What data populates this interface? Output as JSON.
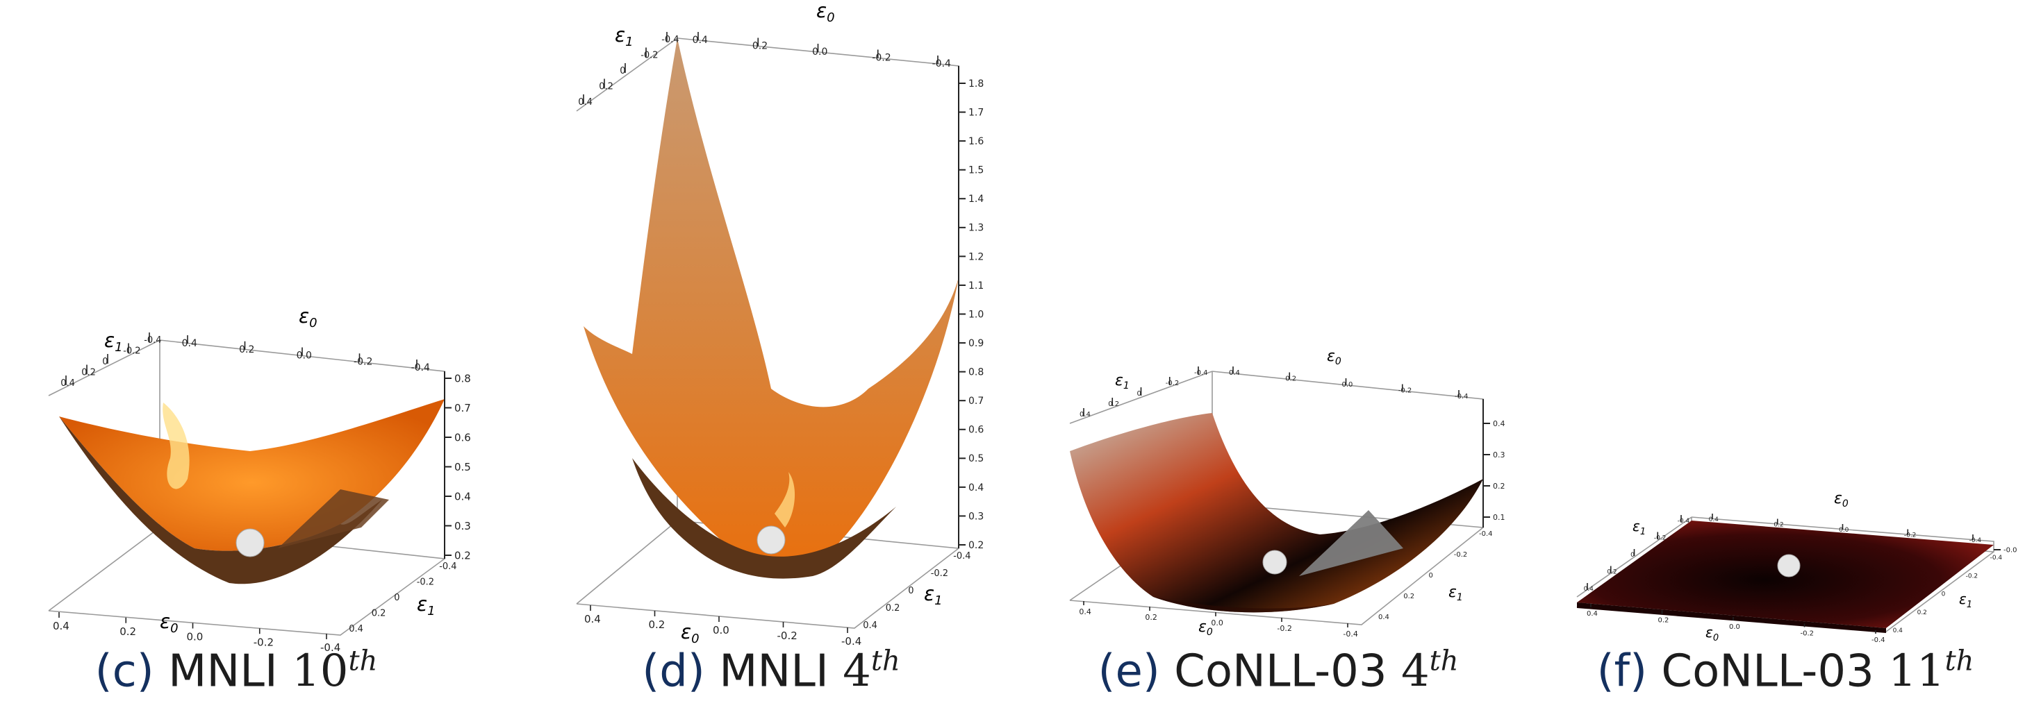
{
  "panels": [
    {
      "label": "(c)",
      "dataset": "MNLI",
      "layer_num": "10",
      "layer_sup": "th",
      "z_ticks": [
        "0.2",
        "0.3",
        "0.4",
        "0.5",
        "0.6",
        "0.7",
        "0.8"
      ],
      "x_ticks": [
        "0.4",
        "0.2",
        "0.0",
        "-0.2",
        "-0.4"
      ],
      "y_ticks": [
        "-0.4",
        "-0.2",
        "0",
        "0.2",
        "0.4"
      ],
      "colors": {
        "surface": "#e8700f",
        "rim": "#5a3418",
        "highlight": "#ffe08a"
      }
    },
    {
      "label": "(d)",
      "dataset": "MNLI",
      "layer_num": "4",
      "layer_sup": "th",
      "z_ticks": [
        "0.2",
        "0.3",
        "0.4",
        "0.5",
        "0.6",
        "0.7",
        "0.8",
        "0.9",
        "1.0",
        "1.1",
        "1.2",
        "1.3",
        "1.4",
        "1.5",
        "1.6",
        "1.7",
        "1.8"
      ],
      "x_ticks": [
        "0.4",
        "0.2",
        "0.0",
        "-0.2",
        "-0.4"
      ],
      "y_ticks": [
        "-0.4",
        "-0.2",
        "0",
        "0.2",
        "0.4"
      ],
      "colors": {
        "surface": "#c98a4e",
        "rim": "#5a3418",
        "highlight": "#ffd27a"
      }
    },
    {
      "label": "(e)",
      "dataset": "CoNLL-03",
      "layer_num": "4",
      "layer_sup": "th",
      "z_ticks": [
        "0.1",
        "0.2",
        "0.3",
        "0.4"
      ],
      "x_ticks": [
        "0.4",
        "0.2",
        "0.0",
        "-0.2",
        "-0.4"
      ],
      "y_ticks": [
        "-0.4",
        "-0.2",
        "0",
        "0.2",
        "0.4"
      ],
      "colors": {
        "surface": "#9b2f10",
        "rim": "#1a0a05",
        "highlight": "#c8c0b4"
      }
    },
    {
      "label": "(f)",
      "dataset": "CoNLL-03",
      "layer_num": "11",
      "layer_sup": "th",
      "z_ticks": [
        "-0.0"
      ],
      "x_ticks": [
        "0.4",
        "0.2",
        "0.0",
        "-0.2",
        "-0.4"
      ],
      "y_ticks": [
        "-0.4",
        "-0.2",
        "0",
        "0.2",
        "0.4"
      ],
      "colors": {
        "surface": "#5a0c0c",
        "rim": "#1b0303",
        "highlight": "#8a1a14"
      }
    }
  ],
  "axis_labels": {
    "e0": "ε",
    "e0_sub": "0",
    "e1": "ε",
    "e1_sub": "1"
  }
}
